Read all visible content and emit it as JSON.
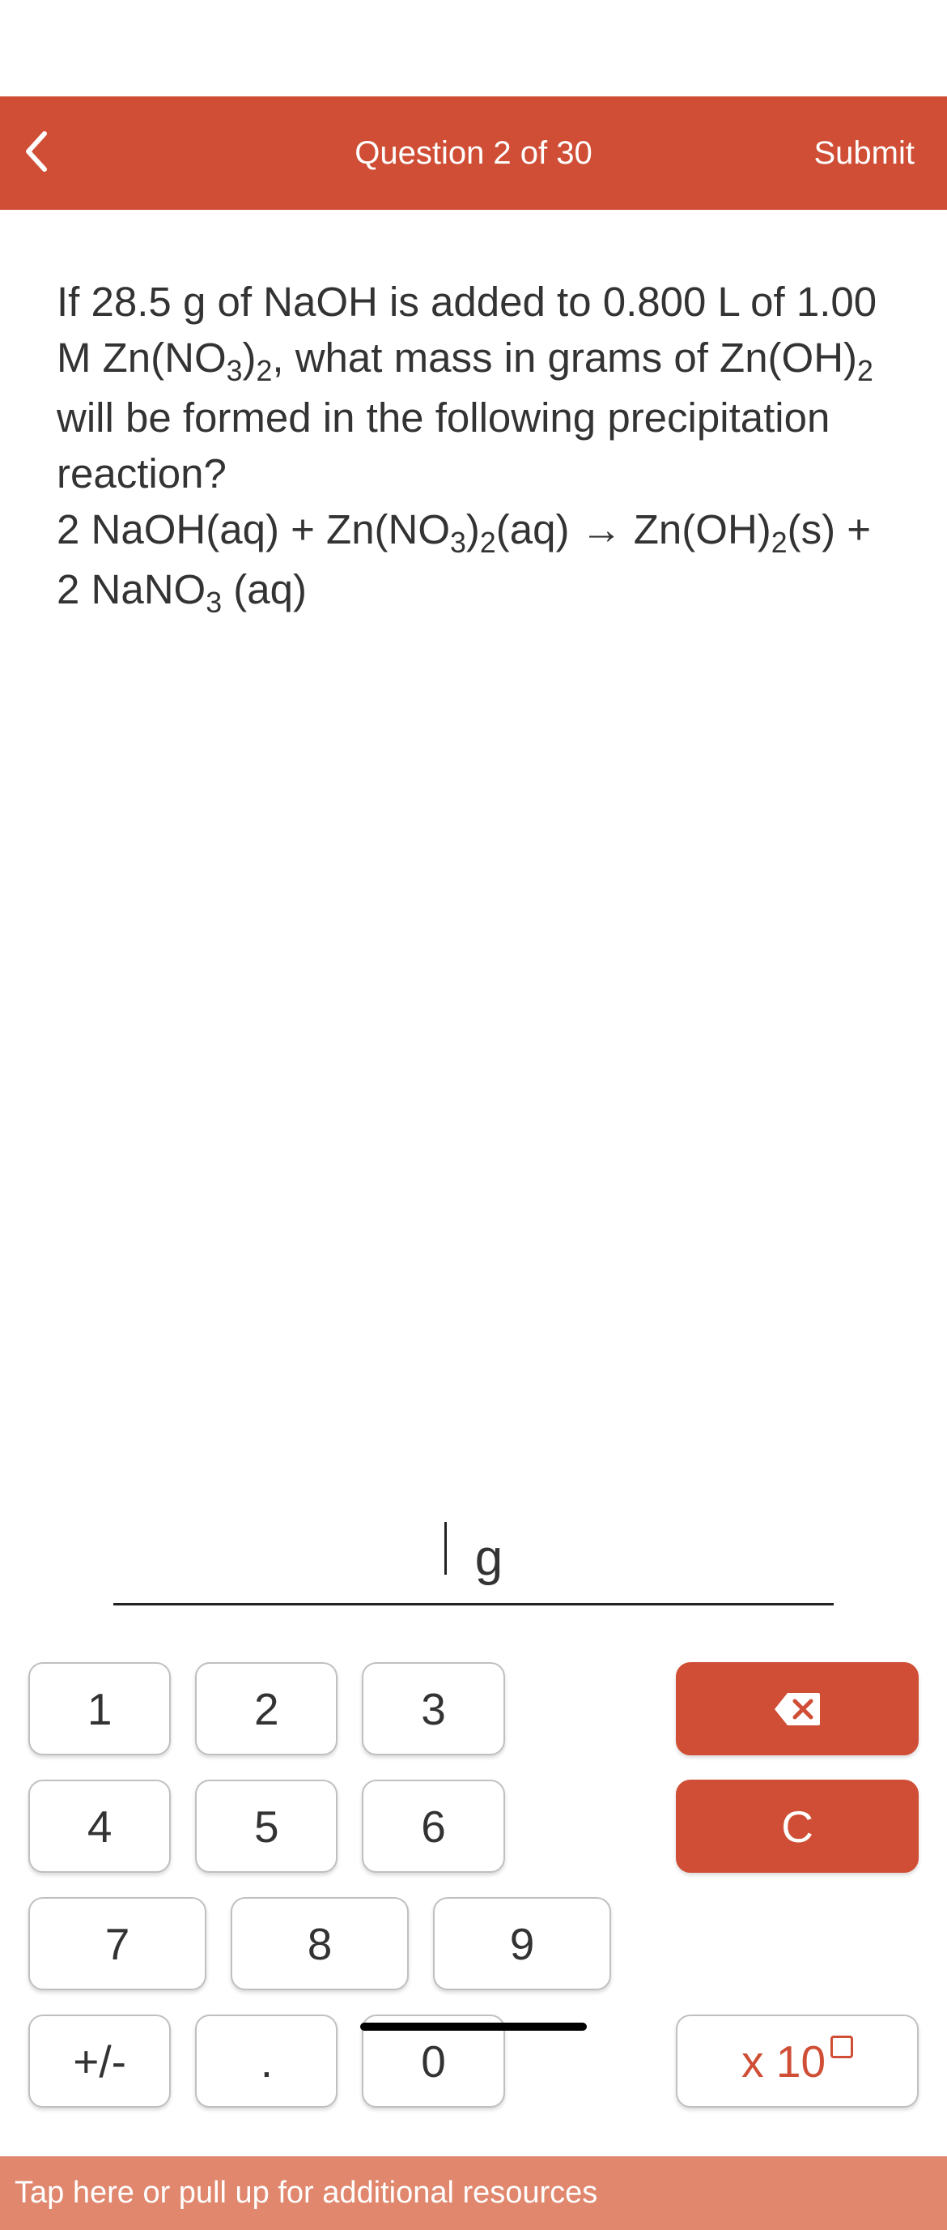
{
  "header": {
    "title": "Question 2 of 30",
    "submit": "Submit"
  },
  "question": {
    "html": "If 28.5 g of NaOH is added to 0.800 L of 1.00 M Zn(NO<sub>3</sub>)<sub>2</sub>, what mass in grams of Zn(OH)<sub>2</sub> will be formed in the following precipitation reaction?<br>2 NaOH(aq) + Zn(NO<sub>3</sub>)<sub>2</sub>(aq) → Zn(OH)<sub>2</sub>(s) + 2 NaNO<sub>3</sub> (aq)"
  },
  "answer": {
    "value": "",
    "unit": "g"
  },
  "keypad": {
    "k1": "1",
    "k2": "2",
    "k3": "3",
    "k4": "4",
    "k5": "5",
    "k6": "6",
    "k7": "7",
    "k8": "8",
    "k9": "9",
    "plusminus": "+/-",
    "dot": ".",
    "k0": "0",
    "clear": "C",
    "exp_prefix": "x 10"
  },
  "footer": {
    "text": "Tap here or pull up for additional resources"
  },
  "colors": {
    "header_bg": "#d04e35",
    "footer_bg": "#e0876d",
    "key_border": "#c0c0c0",
    "text": "#333333"
  }
}
